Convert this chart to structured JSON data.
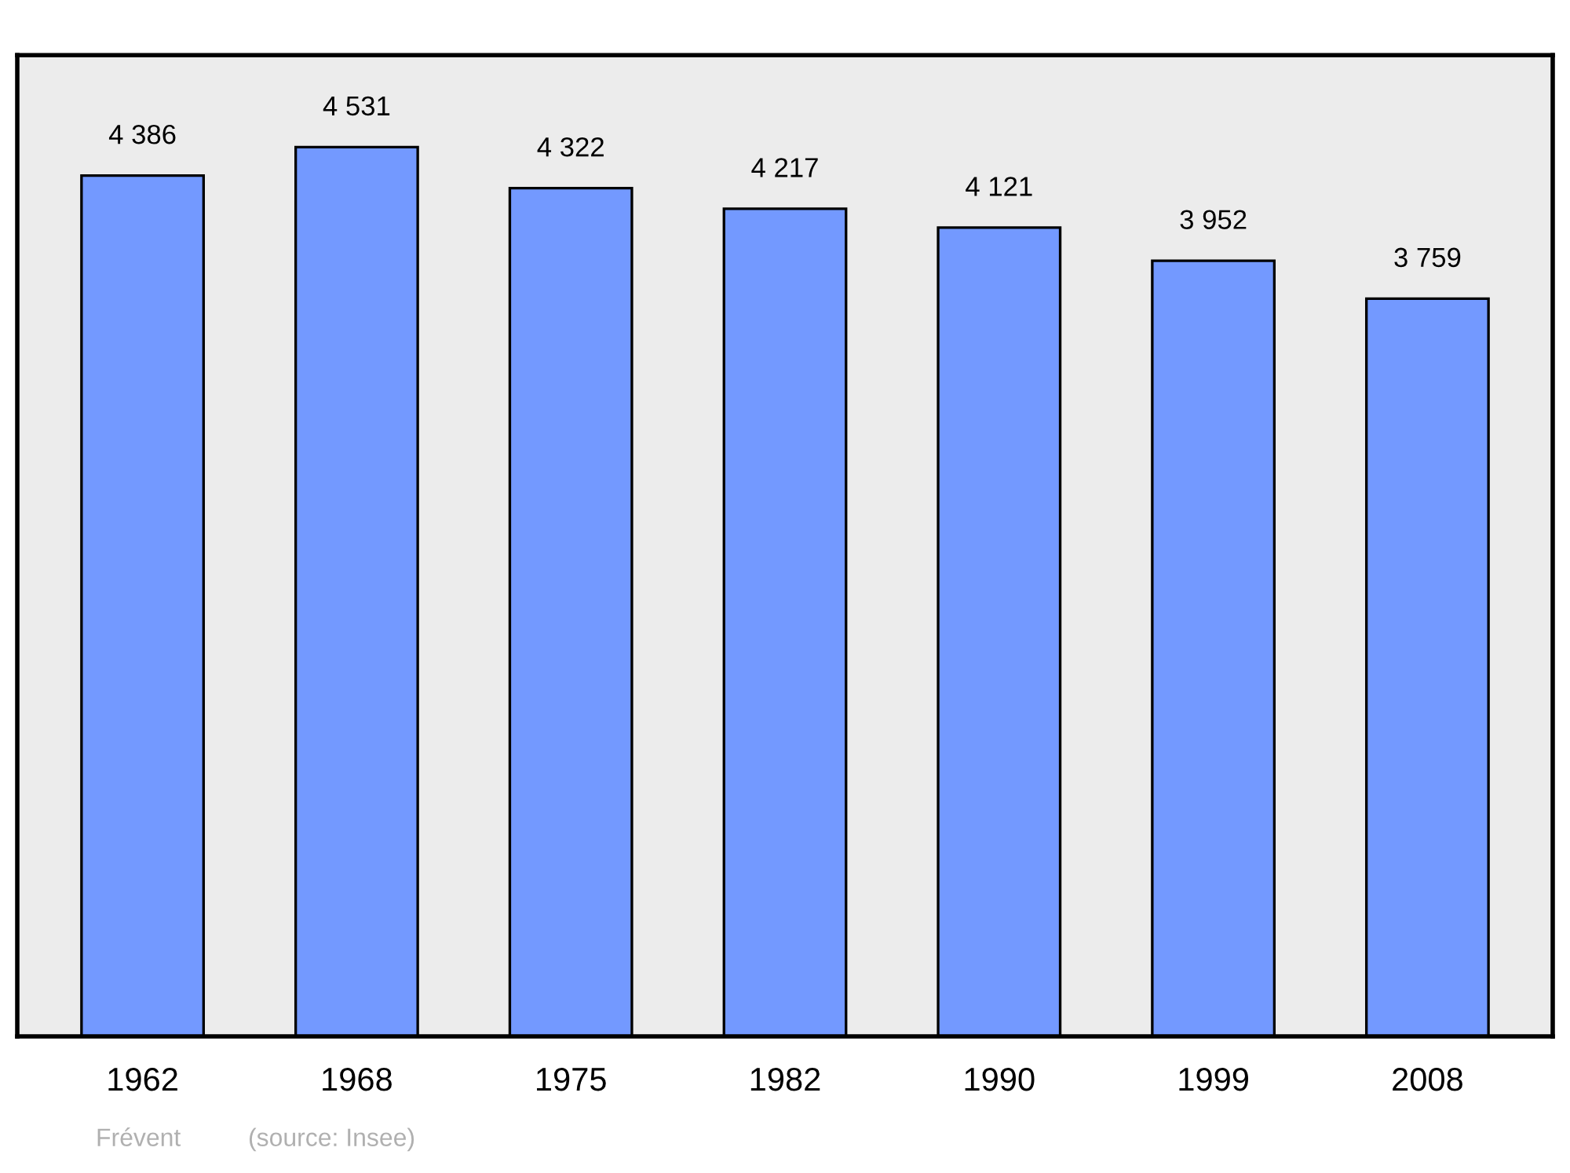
{
  "chart_data": {
    "type": "bar",
    "categories": [
      "1962",
      "1968",
      "1975",
      "1982",
      "1990",
      "1999",
      "2008"
    ],
    "values": [
      4386,
      4531,
      4322,
      4217,
      4121,
      3952,
      3759
    ],
    "value_labels": [
      "4 386",
      "4 531",
      "4 322",
      "4 217",
      "4 121",
      "3 952",
      "3 759"
    ],
    "color": "#7399ff",
    "ylim": [
      0,
      5000
    ],
    "tick_labels": "x",
    "grid": false,
    "legend": false,
    "annotations": [
      "Frévent",
      "(source: Insee)"
    ]
  }
}
